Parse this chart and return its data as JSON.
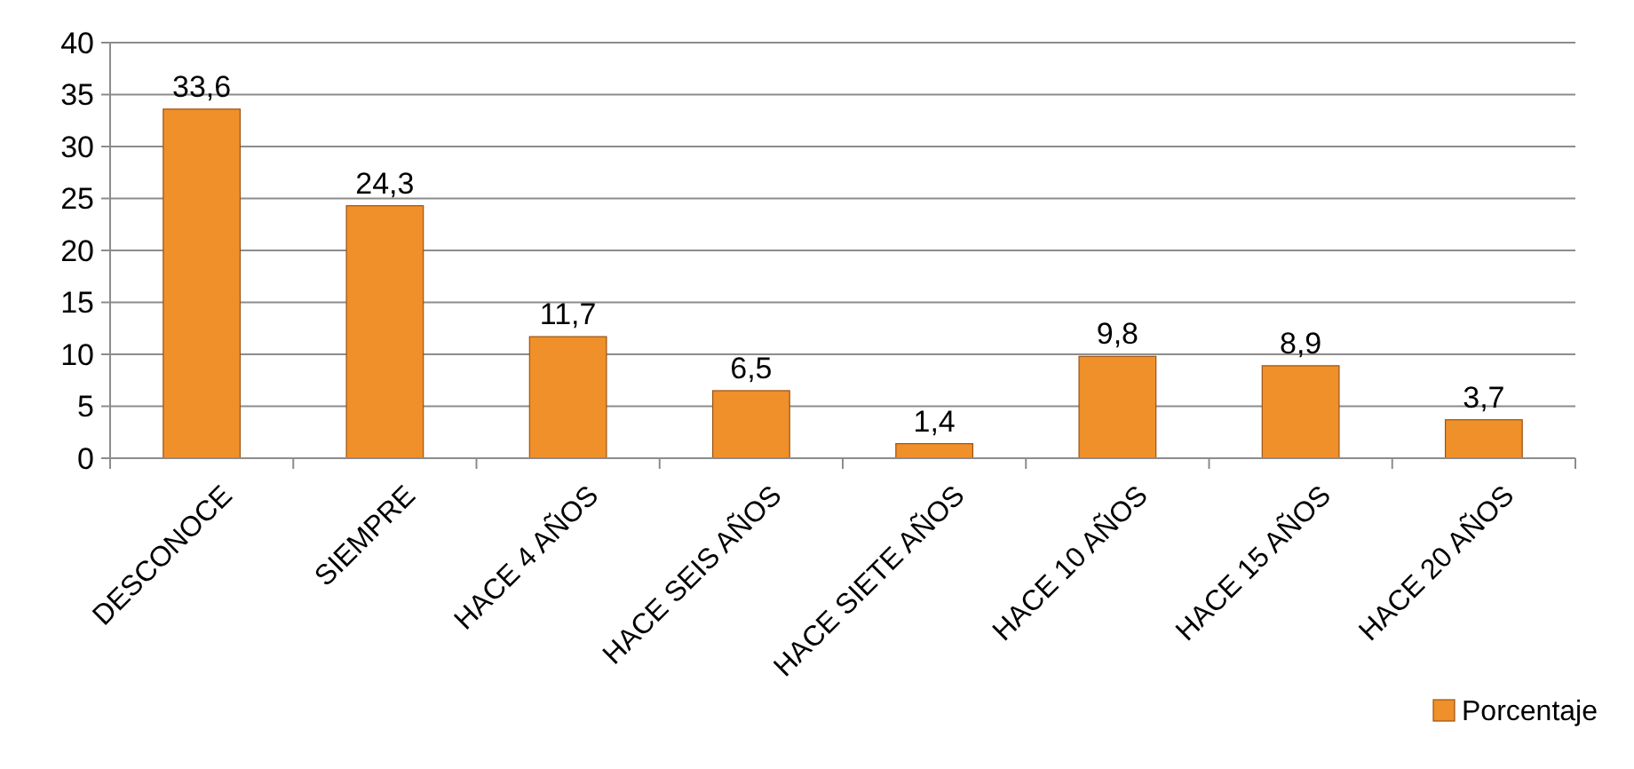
{
  "chart_data": {
    "type": "bar",
    "categories": [
      "DESCONOCE",
      "SIEMPRE",
      "HACE 4 AÑOS",
      "HACE SEIS AÑOS",
      "HACE SIETE AÑOS",
      "HACE 10 AÑOS",
      "HACE 15 AÑOS",
      "HACE 20 AÑOS"
    ],
    "series": [
      {
        "name": "Porcentaje",
        "color": "#f0902a",
        "values": [
          33.6,
          24.3,
          11.7,
          6.5,
          1.4,
          9.8,
          8.9,
          3.7
        ],
        "value_labels": [
          "33,6",
          "24,3",
          "11,7",
          "6,5",
          "1,4",
          "9,8",
          "8,9",
          "3,7"
        ]
      }
    ],
    "ylim": [
      0,
      40
    ],
    "yticks": [
      0,
      5,
      10,
      15,
      20,
      25,
      30,
      35,
      40
    ],
    "grid": "y",
    "legend": "bottom right"
  }
}
